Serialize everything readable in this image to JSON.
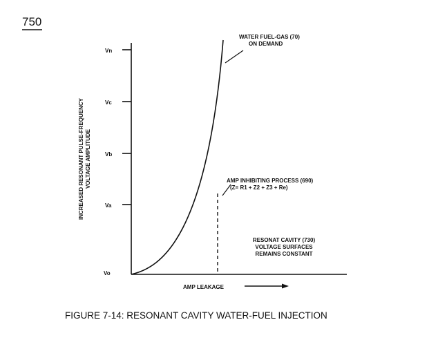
{
  "figure_number": "750",
  "caption": "FIGURE 7-14: RESONANT CAVITY WATER-FUEL INJECTION",
  "y_axis": {
    "label_line1": "INCREASED RESONANT PULSE-FREQUENCY",
    "label_line2": "VOLTAGE AMPLITUDE",
    "ticks": [
      "Vn",
      "Vc",
      "Vb",
      "Va",
      "Vo"
    ]
  },
  "x_axis": {
    "label": "AMP LEAKAGE"
  },
  "annotations": {
    "water_fuel_gas": [
      "WATER FUEL-GAS (70)",
      "ON DEMAND"
    ],
    "amp_inhibiting": [
      "AMP INHIBITING PROCESS (690)",
      "(Z= R1 + Z2 + Z3 + Re)"
    ],
    "resonant_cavity": [
      "RESONAT CAVITY (730)",
      "VOLTAGE SURFACES",
      "REMAINS CONSTANT"
    ]
  }
}
